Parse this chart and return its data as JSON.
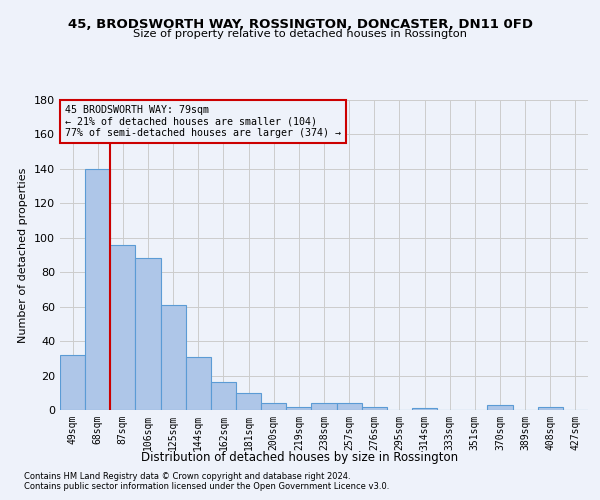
{
  "title": "45, BRODSWORTH WAY, ROSSINGTON, DONCASTER, DN11 0FD",
  "subtitle": "Size of property relative to detached houses in Rossington",
  "xlabel_bottom": "Distribution of detached houses by size in Rossington",
  "ylabel": "Number of detached properties",
  "footer_line1": "Contains HM Land Registry data © Crown copyright and database right 2024.",
  "footer_line2": "Contains public sector information licensed under the Open Government Licence v3.0.",
  "categories": [
    "49sqm",
    "68sqm",
    "87sqm",
    "106sqm",
    "125sqm",
    "144sqm",
    "162sqm",
    "181sqm",
    "200sqm",
    "219sqm",
    "238sqm",
    "257sqm",
    "276sqm",
    "295sqm",
    "314sqm",
    "333sqm",
    "351sqm",
    "370sqm",
    "389sqm",
    "408sqm",
    "427sqm"
  ],
  "values": [
    32,
    140,
    96,
    88,
    61,
    31,
    16,
    10,
    4,
    2,
    4,
    4,
    2,
    0,
    1,
    0,
    0,
    3,
    0,
    2,
    0
  ],
  "bar_color": "#aec6e8",
  "bar_edge_color": "#5b9bd5",
  "grid_color": "#cccccc",
  "background_color": "#eef2fa",
  "vline_x_index": 1.5,
  "vline_color": "#cc0000",
  "annotation_line1": "45 BRODSWORTH WAY: 79sqm",
  "annotation_line2": "← 21% of detached houses are smaller (104)",
  "annotation_line3": "77% of semi-detached houses are larger (374) →",
  "annotation_box_color": "#cc0000",
  "ylim": [
    0,
    180
  ],
  "yticks": [
    0,
    20,
    40,
    60,
    80,
    100,
    120,
    140,
    160,
    180
  ]
}
